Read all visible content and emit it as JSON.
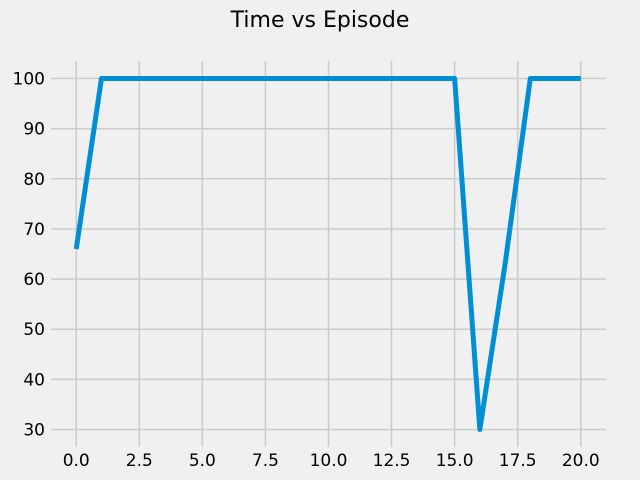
{
  "chart_data": {
    "type": "line",
    "title": "Time vs Episode",
    "xlabel": "",
    "ylabel": "",
    "xlim": [
      -1,
      21
    ],
    "ylim": [
      26.5,
      103.5
    ],
    "x_ticks": [
      0,
      2.5,
      5,
      7.5,
      10,
      12.5,
      15,
      17.5,
      20
    ],
    "x_tick_labels": [
      "0.0",
      "2.5",
      "5.0",
      "7.5",
      "10.0",
      "12.5",
      "15.0",
      "17.5",
      "20.0"
    ],
    "y_ticks": [
      30,
      40,
      50,
      60,
      70,
      80,
      90,
      100
    ],
    "y_tick_labels": [
      "30",
      "40",
      "50",
      "60",
      "70",
      "80",
      "90",
      "100"
    ],
    "grid": true,
    "series": [
      {
        "color": "#008fd5",
        "x": [
          0,
          1,
          2,
          3,
          4,
          5,
          6,
          7,
          8,
          9,
          10,
          11,
          12,
          13,
          14,
          15,
          16,
          17,
          18,
          19,
          20
        ],
        "y": [
          66,
          100,
          100,
          100,
          100,
          100,
          100,
          100,
          100,
          100,
          100,
          100,
          100,
          100,
          100,
          100,
          30,
          63,
          100,
          100,
          100
        ]
      }
    ]
  }
}
